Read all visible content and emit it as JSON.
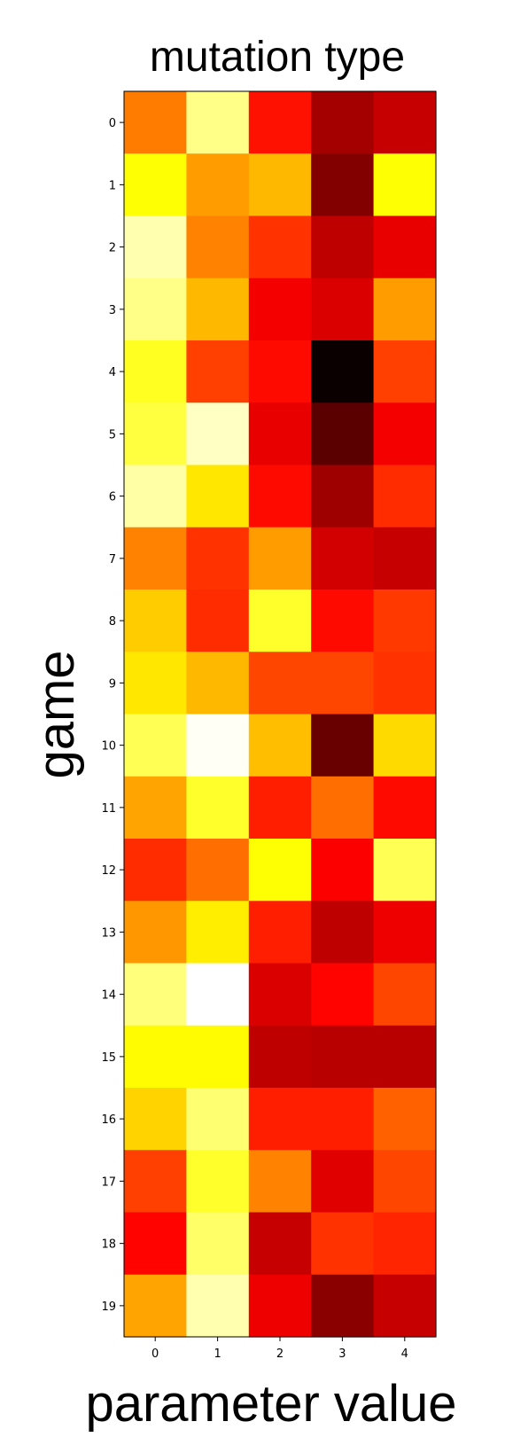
{
  "chart_data": {
    "type": "heatmap",
    "title": "mutation type",
    "xlabel": "parameter value",
    "ylabel": "game",
    "colormap": "hot",
    "x_categories": [
      "0",
      "1",
      "2",
      "3",
      "4"
    ],
    "y_categories": [
      "0",
      "1",
      "2",
      "3",
      "4",
      "5",
      "6",
      "7",
      "8",
      "9",
      "10",
      "11",
      "12",
      "13",
      "14",
      "15",
      "16",
      "17",
      "18",
      "19"
    ],
    "values": [
      [
        0.55,
        0.88,
        0.39,
        0.23,
        0.28
      ],
      [
        0.75,
        0.6,
        0.64,
        0.18,
        0.75
      ],
      [
        0.92,
        0.56,
        0.44,
        0.27,
        0.33
      ],
      [
        0.88,
        0.64,
        0.35,
        0.31,
        0.6
      ],
      [
        0.78,
        0.46,
        0.38,
        0.0,
        0.46
      ],
      [
        0.81,
        0.94,
        0.33,
        0.12,
        0.35
      ],
      [
        0.91,
        0.71,
        0.38,
        0.22,
        0.43
      ],
      [
        0.56,
        0.44,
        0.6,
        0.3,
        0.28
      ],
      [
        0.67,
        0.43,
        0.79,
        0.38,
        0.45
      ],
      [
        0.71,
        0.64,
        0.47,
        0.47,
        0.44
      ],
      [
        0.83,
        0.99,
        0.65,
        0.14,
        0.69
      ],
      [
        0.61,
        0.79,
        0.41,
        0.53,
        0.38
      ],
      [
        0.43,
        0.53,
        0.75,
        0.36,
        0.83
      ],
      [
        0.59,
        0.72,
        0.41,
        0.27,
        0.34
      ],
      [
        0.87,
        1.0,
        0.31,
        0.37,
        0.47
      ],
      [
        0.74,
        0.74,
        0.27,
        0.26,
        0.26
      ],
      [
        0.68,
        0.86,
        0.41,
        0.41,
        0.51
      ],
      [
        0.46,
        0.79,
        0.56,
        0.32,
        0.47
      ],
      [
        0.37,
        0.85,
        0.28,
        0.44,
        0.42
      ],
      [
        0.61,
        0.92,
        0.34,
        0.19,
        0.28
      ]
    ]
  }
}
